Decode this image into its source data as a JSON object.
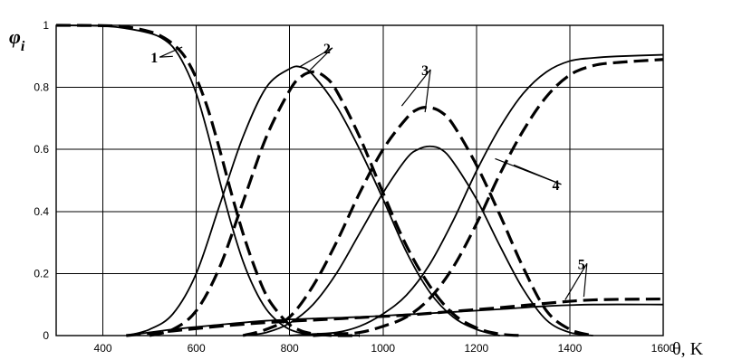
{
  "chart_data": {
    "type": "line",
    "ylabel": "φ",
    "ylabel_subscript": "i",
    "xlabel": "θ, K",
    "xlim": [
      300,
      1600
    ],
    "ylim": [
      0,
      1
    ],
    "grid": true,
    "x_ticks": [
      {
        "value": 400,
        "label": "400"
      },
      {
        "value": 600,
        "label": "600"
      },
      {
        "value": 800,
        "label": "800"
      },
      {
        "value": 1000,
        "label": "1000"
      },
      {
        "value": 1200,
        "label": "1200"
      },
      {
        "value": 1400,
        "label": "1400"
      },
      {
        "value": 1600,
        "label": "1600"
      }
    ],
    "y_ticks": [
      {
        "value": 0,
        "label": "0"
      },
      {
        "value": 0.2,
        "label": "0.2"
      },
      {
        "value": 0.4,
        "label": "0.4"
      },
      {
        "value": 0.6,
        "label": "0.6"
      },
      {
        "value": 0.8,
        "label": "0.8"
      },
      {
        "value": 1,
        "label": "1"
      }
    ],
    "curve_labels": [
      {
        "text": "1",
        "x": 510,
        "y": 0.88,
        "pointers": [
          [
            550,
            0.9
          ],
          [
            570,
            0.93
          ]
        ]
      },
      {
        "text": "2",
        "x": 880,
        "y": 0.91,
        "pointers": [
          [
            820,
            0.865
          ],
          [
            840,
            0.85
          ]
        ]
      },
      {
        "text": "3",
        "x": 1090,
        "y": 0.84,
        "pointers": [
          [
            1040,
            0.74
          ],
          [
            1090,
            0.72
          ]
        ]
      },
      {
        "text": "4",
        "x": 1370,
        "y": 0.47,
        "pointers": [
          [
            1280,
            0.55
          ],
          [
            1240,
            0.57
          ]
        ]
      },
      {
        "text": "5",
        "x": 1425,
        "y": 0.215,
        "pointers": [
          [
            1390,
            0.115
          ],
          [
            1430,
            0.125
          ]
        ]
      }
    ],
    "series": [
      {
        "style": "solid",
        "x": [
          300,
          400,
          450,
          500,
          525,
          550,
          575,
          600,
          625,
          650,
          675,
          700,
          725,
          750,
          775,
          800,
          825,
          850,
          875,
          900,
          950
        ],
        "values": [
          1.0,
          0.998,
          0.99,
          0.975,
          0.96,
          0.93,
          0.87,
          0.78,
          0.65,
          0.5,
          0.36,
          0.24,
          0.15,
          0.085,
          0.045,
          0.02,
          0.008,
          0.003,
          0.001,
          0,
          0
        ]
      },
      {
        "style": "dashed",
        "x": [
          300,
          400,
          450,
          500,
          525,
          550,
          575,
          600,
          625,
          650,
          675,
          700,
          725,
          750,
          775,
          800,
          825,
          850,
          875,
          900,
          950
        ],
        "values": [
          1.0,
          0.999,
          0.995,
          0.98,
          0.965,
          0.94,
          0.9,
          0.83,
          0.73,
          0.6,
          0.46,
          0.33,
          0.22,
          0.13,
          0.075,
          0.035,
          0.015,
          0.006,
          0.002,
          0,
          0
        ]
      },
      {
        "style": "solid",
        "x": [
          450,
          500,
          550,
          600,
          650,
          700,
          750,
          800,
          825,
          850,
          900,
          950,
          1000,
          1050,
          1100,
          1150,
          1200,
          1250
        ],
        "values": [
          0,
          0.02,
          0.07,
          0.2,
          0.42,
          0.64,
          0.8,
          0.86,
          0.865,
          0.84,
          0.74,
          0.6,
          0.44,
          0.27,
          0.14,
          0.06,
          0.02,
          0
        ]
      },
      {
        "style": "dashed",
        "x": [
          500,
          550,
          600,
          650,
          700,
          750,
          800,
          825,
          850,
          875,
          900,
          950,
          1000,
          1050,
          1100,
          1150,
          1200,
          1250,
          1300
        ],
        "values": [
          0,
          0.02,
          0.08,
          0.22,
          0.43,
          0.64,
          0.79,
          0.835,
          0.85,
          0.835,
          0.79,
          0.64,
          0.46,
          0.29,
          0.16,
          0.07,
          0.025,
          0.005,
          0
        ]
      },
      {
        "style": "solid",
        "x": [
          700,
          750,
          800,
          850,
          900,
          950,
          1000,
          1050,
          1075,
          1100,
          1125,
          1150,
          1200,
          1250,
          1300,
          1350,
          1400,
          1450
        ],
        "values": [
          0,
          0.01,
          0.04,
          0.1,
          0.2,
          0.33,
          0.46,
          0.57,
          0.6,
          0.61,
          0.6,
          0.56,
          0.44,
          0.29,
          0.15,
          0.05,
          0.01,
          0
        ]
      },
      {
        "style": "dashed",
        "x": [
          700,
          750,
          800,
          850,
          900,
          950,
          1000,
          1050,
          1075,
          1100,
          1125,
          1150,
          1200,
          1250,
          1300,
          1350,
          1400,
          1450
        ],
        "values": [
          0,
          0.02,
          0.06,
          0.16,
          0.3,
          0.46,
          0.6,
          0.7,
          0.73,
          0.735,
          0.72,
          0.68,
          0.55,
          0.39,
          0.22,
          0.08,
          0.02,
          0
        ]
      },
      {
        "style": "solid",
        "x": [
          800,
          850,
          900,
          950,
          1000,
          1050,
          1100,
          1150,
          1200,
          1250,
          1300,
          1350,
          1400,
          1450,
          1500,
          1600
        ],
        "values": [
          0,
          0.005,
          0.01,
          0.03,
          0.07,
          0.13,
          0.23,
          0.37,
          0.53,
          0.67,
          0.78,
          0.85,
          0.885,
          0.895,
          0.9,
          0.905
        ]
      },
      {
        "style": "dashed",
        "x": [
          850,
          900,
          950,
          1000,
          1050,
          1100,
          1150,
          1200,
          1250,
          1300,
          1350,
          1400,
          1450,
          1500,
          1600
        ],
        "values": [
          0,
          0.005,
          0.01,
          0.03,
          0.06,
          0.12,
          0.22,
          0.36,
          0.52,
          0.66,
          0.77,
          0.84,
          0.87,
          0.88,
          0.89
        ]
      },
      {
        "style": "solid",
        "x": [
          450,
          550,
          650,
          750,
          850,
          950,
          1050,
          1150,
          1250,
          1350,
          1450,
          1600
        ],
        "values": [
          0,
          0.02,
          0.035,
          0.048,
          0.055,
          0.06,
          0.068,
          0.076,
          0.085,
          0.095,
          0.1,
          0.1
        ]
      },
      {
        "style": "dashed",
        "x": [
          450,
          550,
          650,
          750,
          850,
          950,
          1050,
          1150,
          1250,
          1350,
          1450,
          1600
        ],
        "values": [
          0,
          0.015,
          0.03,
          0.042,
          0.05,
          0.058,
          0.066,
          0.078,
          0.09,
          0.104,
          0.115,
          0.118
        ]
      }
    ]
  }
}
